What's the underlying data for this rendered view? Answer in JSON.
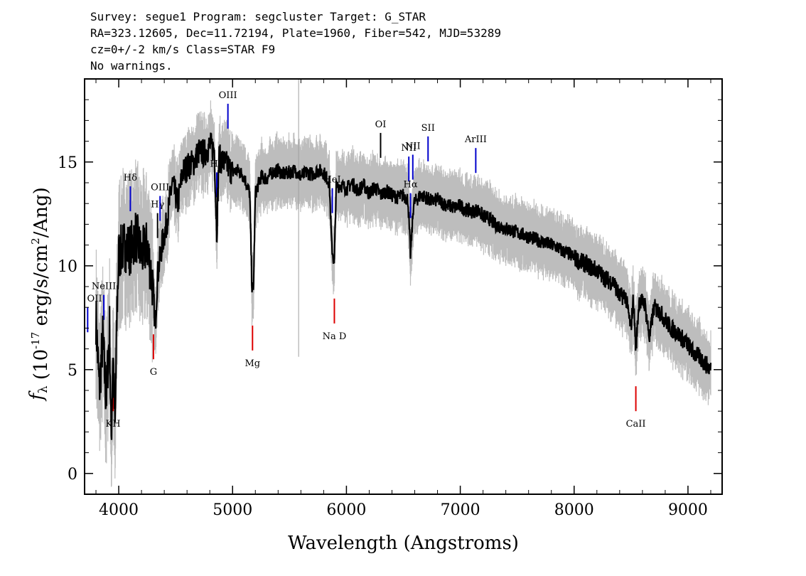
{
  "header": {
    "line1": "Survey: segue1 Program: segcluster Target: G_STAR",
    "line2": "RA=323.12605, Dec=11.72194, Plate=1960, Fiber=542, MJD=53289",
    "line3": "cz=0+/-2 km/s Class=STAR F9",
    "line4": "No warnings."
  },
  "colors": {
    "flux": "#000000",
    "error": "#bdbdbd",
    "emission": "#0000cc",
    "absorption": "#dd0000",
    "neutral": "#000000",
    "marker": "#a0a0a0"
  },
  "chart_data": {
    "type": "line",
    "xlabel": "Wavelength (Angstroms)",
    "ylabel": "f_λ (10^-17 erg/s/cm^2/Ang)",
    "xlim": [
      3700,
      9300
    ],
    "ylim": [
      -1,
      19
    ],
    "xticks": [
      "4000",
      "5000",
      "6000",
      "7000",
      "8000",
      "9000"
    ],
    "yticks": [
      "0",
      "5",
      "10",
      "15"
    ],
    "series": [
      {
        "points": [
          [
            3800,
            7.5
          ],
          [
            3830,
            4.0
          ],
          [
            3860,
            6.5
          ],
          [
            3890,
            3.5
          ],
          [
            3920,
            7.0
          ],
          [
            3934,
            1.5
          ],
          [
            3950,
            6.0
          ],
          [
            3968,
            2.0
          ],
          [
            3985,
            8.0
          ],
          [
            4000,
            10.5
          ],
          [
            4050,
            11.0
          ],
          [
            4100,
            10.8
          ],
          [
            4150,
            11.5
          ],
          [
            4200,
            10.5
          ],
          [
            4250,
            11.0
          ],
          [
            4300,
            9.0
          ],
          [
            4320,
            7.0
          ],
          [
            4340,
            9.5
          ],
          [
            4380,
            11.0
          ],
          [
            4420,
            12.0
          ],
          [
            4470,
            14.0
          ],
          [
            4520,
            13.0
          ],
          [
            4560,
            14.5
          ],
          [
            4610,
            14.8
          ],
          [
            4660,
            15.0
          ],
          [
            4700,
            15.5
          ],
          [
            4750,
            15.4
          ],
          [
            4800,
            15.8
          ],
          [
            4840,
            15.6
          ],
          [
            4861,
            11.5
          ],
          [
            4880,
            15.2
          ],
          [
            4920,
            15.0
          ],
          [
            4960,
            14.8
          ],
          [
            5000,
            14.5
          ],
          [
            5050,
            14.6
          ],
          [
            5100,
            14.3
          ],
          [
            5150,
            13.5
          ],
          [
            5170,
            9.0
          ],
          [
            5183,
            8.8
          ],
          [
            5200,
            13.5
          ],
          [
            5250,
            14.3
          ],
          [
            5300,
            14.2
          ],
          [
            5350,
            14.5
          ],
          [
            5400,
            14.6
          ],
          [
            5450,
            14.4
          ],
          [
            5500,
            14.5
          ],
          [
            5550,
            14.6
          ],
          [
            5600,
            14.3
          ],
          [
            5650,
            14.5
          ],
          [
            5700,
            14.4
          ],
          [
            5750,
            14.6
          ],
          [
            5800,
            14.5
          ],
          [
            5850,
            14.0
          ],
          [
            5870,
            11.0
          ],
          [
            5893,
            10.0
          ],
          [
            5910,
            13.8
          ],
          [
            5950,
            13.9
          ],
          [
            6000,
            13.7
          ],
          [
            6050,
            14.0
          ],
          [
            6100,
            13.6
          ],
          [
            6150,
            13.9
          ],
          [
            6200,
            13.5
          ],
          [
            6250,
            13.8
          ],
          [
            6300,
            13.4
          ],
          [
            6350,
            13.6
          ],
          [
            6400,
            13.4
          ],
          [
            6450,
            13.3
          ],
          [
            6500,
            13.4
          ],
          [
            6540,
            13.2
          ],
          [
            6563,
            10.5
          ],
          [
            6590,
            13.0
          ],
          [
            6650,
            13.4
          ],
          [
            6700,
            13.3
          ],
          [
            6750,
            13.1
          ],
          [
            6800,
            13.2
          ],
          [
            6850,
            13.0
          ],
          [
            6900,
            12.9
          ],
          [
            6950,
            12.8
          ],
          [
            7000,
            12.9
          ],
          [
            7050,
            12.7
          ],
          [
            7100,
            12.6
          ],
          [
            7150,
            12.7
          ],
          [
            7200,
            12.4
          ],
          [
            7250,
            12.3
          ],
          [
            7300,
            12.0
          ],
          [
            7350,
            11.9
          ],
          [
            7400,
            11.8
          ],
          [
            7450,
            11.7
          ],
          [
            7500,
            11.6
          ],
          [
            7550,
            11.5
          ],
          [
            7600,
            11.4
          ],
          [
            7650,
            11.3
          ],
          [
            7700,
            11.2
          ],
          [
            7750,
            11.1
          ],
          [
            7800,
            11.0
          ],
          [
            7850,
            10.9
          ],
          [
            7900,
            10.7
          ],
          [
            7950,
            10.6
          ],
          [
            8000,
            10.4
          ],
          [
            8050,
            10.2
          ],
          [
            8100,
            10.1
          ],
          [
            8150,
            9.9
          ],
          [
            8200,
            9.8
          ],
          [
            8250,
            9.5
          ],
          [
            8300,
            9.3
          ],
          [
            8350,
            9.2
          ],
          [
            8400,
            8.5
          ],
          [
            8450,
            8.6
          ],
          [
            8498,
            7.0
          ],
          [
            8520,
            8.4
          ],
          [
            8542,
            6.0
          ],
          [
            8570,
            8.3
          ],
          [
            8620,
            8.2
          ],
          [
            8662,
            6.5
          ],
          [
            8700,
            8.0
          ],
          [
            8750,
            7.8
          ],
          [
            8800,
            7.4
          ],
          [
            8850,
            7.0
          ],
          [
            8900,
            6.8
          ],
          [
            8950,
            6.5
          ],
          [
            9000,
            6.2
          ],
          [
            9050,
            5.8
          ],
          [
            9100,
            5.6
          ],
          [
            9150,
            5.3
          ],
          [
            9200,
            5.0
          ]
        ]
      }
    ],
    "annotations": [
      {
        "label": "OII",
        "x": 3727,
        "kind": "emission"
      },
      {
        "label": "NeIII",
        "x": 3869,
        "kind": "emission"
      },
      {
        "label": "Hδ",
        "x": 4102,
        "kind": "emission"
      },
      {
        "label": "Hγ",
        "x": 4341,
        "kind": "neutral"
      },
      {
        "label": "OIII",
        "x": 4363,
        "kind": "emission"
      },
      {
        "label": "Hβ",
        "x": 4861,
        "kind": "emission"
      },
      {
        "label": "OIII",
        "x": 4959,
        "kind": "emission"
      },
      {
        "label": "HeI",
        "x": 5876,
        "kind": "emission"
      },
      {
        "label": "OI",
        "x": 6300,
        "kind": "neutral"
      },
      {
        "label": "NII",
        "x": 6548,
        "kind": "emission"
      },
      {
        "label": "Hα",
        "x": 6563,
        "kind": "emission"
      },
      {
        "label": "NII",
        "x": 6583,
        "kind": "emission"
      },
      {
        "label": "SII",
        "x": 6717,
        "kind": "emission"
      },
      {
        "label": "ArIII",
        "x": 7136,
        "kind": "emission"
      },
      {
        "label": "KH",
        "x": 3950,
        "kind": "absorption"
      },
      {
        "label": "G",
        "x": 4305,
        "kind": "absorption"
      },
      {
        "label": "Mg",
        "x": 5175,
        "kind": "absorption"
      },
      {
        "label": "Na D",
        "x": 5894,
        "kind": "absorption"
      },
      {
        "label": "CaII",
        "x": 8542,
        "kind": "absorption"
      }
    ]
  }
}
